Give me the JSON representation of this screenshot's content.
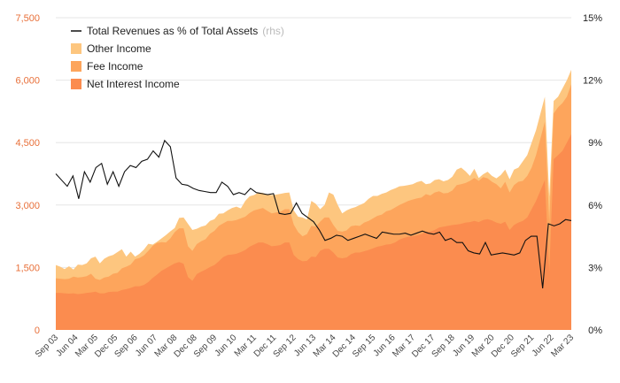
{
  "chart_data": {
    "type": "area",
    "title": "",
    "xlabel": "",
    "ylabel": "",
    "x_ticks": [
      "Sep 03",
      "Jun 04",
      "Mar 05",
      "Dec 05",
      "Sep 06",
      "Jun 07",
      "Mar 08",
      "Dec 08",
      "Sep 09",
      "Jun 10",
      "Mar 11",
      "Dec 11",
      "Sep 12",
      "Jun 13",
      "Mar 14",
      "Dec 14",
      "Sep 15",
      "Jun 16",
      "Mar 17",
      "Dec 17",
      "Sep 18",
      "Jun 19",
      "Mar 20",
      "Dec 20",
      "Sep 21",
      "Jun 22",
      "Mar 23"
    ],
    "y_left": {
      "ylim": [
        0,
        7500
      ],
      "ticks": [
        "0",
        "1,500",
        "3,000",
        "4,500",
        "6,000",
        "7,500"
      ]
    },
    "y_right": {
      "ylim": [
        0,
        15
      ],
      "ticks": [
        "0%",
        "3%",
        "6%",
        "9%",
        "12%",
        "15%"
      ]
    },
    "grid": true,
    "legend_position": "top-left",
    "legend": {
      "line_label": "Total Revenues as % of Total Assets",
      "line_suffix": "(rhs)"
    },
    "colors": {
      "net_interest": "#fb8c4f",
      "fee": "#fda55c",
      "other": "#fdc67f",
      "line": "#111111",
      "left_axis": "#e8703a"
    },
    "series": [
      {
        "name": "Net Interest Income",
        "stack_top": [
          890,
          890,
          880,
          870,
          880,
          860,
          870,
          890,
          900,
          920,
          880,
          880,
          910,
          920,
          920,
          960,
          980,
          1010,
          1050,
          1050,
          1080,
          1150,
          1250,
          1330,
          1420,
          1480,
          1540,
          1600,
          1630,
          1590,
          1270,
          1180,
          1340,
          1400,
          1450,
          1510,
          1560,
          1650,
          1750,
          1800,
          1810,
          1830,
          1870,
          1920,
          2000,
          2050,
          2100,
          2100,
          2060,
          2010,
          2020,
          2040,
          2100,
          2100,
          1800,
          1700,
          1650,
          1660,
          1760,
          1750,
          1900,
          1950,
          1950,
          1860,
          1740,
          1720,
          1740,
          1820,
          1860,
          1860,
          1890,
          1920,
          1960,
          2000,
          2020,
          2050,
          2060,
          2100,
          2170,
          2210,
          2240,
          2250,
          2270,
          2300,
          2360,
          2360,
          2400,
          2460,
          2480,
          2500,
          2520,
          2530,
          2550,
          2580,
          2590,
          2620,
          2590,
          2640,
          2660,
          2630,
          2580,
          2550,
          2600,
          2400,
          2520,
          2580,
          2620,
          2700,
          2900,
          3100,
          3350,
          3600,
          1400,
          4100,
          4200,
          4300,
          4500,
          4700
        ]
      },
      {
        "name": "Fee Income",
        "stack_top": [
          1240,
          1230,
          1220,
          1230,
          1280,
          1260,
          1270,
          1290,
          1350,
          1230,
          1200,
          1260,
          1280,
          1350,
          1370,
          1480,
          1520,
          1570,
          1700,
          1730,
          1790,
          1900,
          2020,
          2090,
          2110,
          2100,
          2200,
          2350,
          2440,
          2440,
          2010,
          1900,
          2060,
          2130,
          2180,
          2310,
          2380,
          2500,
          2560,
          2620,
          2620,
          2640,
          2680,
          2720,
          2810,
          2870,
          2900,
          2930,
          2860,
          2800,
          2820,
          2840,
          2900,
          2900,
          2530,
          2350,
          2250,
          2300,
          2500,
          2480,
          2600,
          2700,
          2700,
          2520,
          2380,
          2360,
          2390,
          2490,
          2510,
          2500,
          2580,
          2620,
          2680,
          2740,
          2770,
          2850,
          2880,
          2940,
          3000,
          3050,
          3100,
          3130,
          3160,
          3180,
          3260,
          3230,
          3300,
          3330,
          3280,
          3290,
          3350,
          3480,
          3500,
          3530,
          3580,
          3650,
          3580,
          3670,
          3640,
          3560,
          3500,
          3400,
          3560,
          3300,
          3480,
          3560,
          3580,
          3700,
          3900,
          4200,
          4600,
          5000,
          2600,
          5200,
          5350,
          5450,
          5600,
          5900
        ]
      },
      {
        "name": "Other Income",
        "stack_top": [
          1560,
          1520,
          1460,
          1530,
          1450,
          1570,
          1560,
          1600,
          1720,
          1760,
          1600,
          1710,
          1770,
          1800,
          1870,
          1940,
          1760,
          1880,
          1760,
          1830,
          1930,
          2070,
          2050,
          2120,
          2200,
          2280,
          2370,
          2450,
          2690,
          2700,
          2550,
          2400,
          2430,
          2480,
          2510,
          2620,
          2660,
          2790,
          2800,
          2870,
          2930,
          2960,
          2920,
          3100,
          3210,
          3240,
          3300,
          3290,
          3250,
          3240,
          3250,
          3270,
          3290,
          3300,
          2870,
          2720,
          2700,
          2650,
          3100,
          3030,
          2900,
          3000,
          3300,
          3250,
          3000,
          2800,
          2870,
          2920,
          2950,
          3000,
          3050,
          3150,
          3220,
          3220,
          3270,
          3300,
          3360,
          3400,
          3450,
          3460,
          3480,
          3500,
          3550,
          3580,
          3500,
          3520,
          3600,
          3620,
          3570,
          3600,
          3680,
          3850,
          3900,
          3810,
          3700,
          3870,
          3650,
          3740,
          3800,
          3700,
          3640,
          3720,
          3850,
          3620,
          3850,
          3900,
          4050,
          4200,
          4500,
          4800,
          5200,
          5600,
          3200,
          5500,
          5600,
          5800,
          6000,
          6250
        ]
      },
      {
        "name": "Total Revenues as % of Total Assets",
        "axis": "right",
        "values": [
          7.5,
          7.2,
          6.9,
          7.4,
          6.3,
          7.6,
          7.1,
          7.8,
          8.0,
          7.0,
          7.6,
          6.9,
          7.6,
          7.9,
          7.8,
          8.1,
          8.2,
          8.6,
          8.3,
          9.1,
          8.8,
          7.3,
          7.0,
          6.95,
          6.8,
          6.7,
          6.65,
          6.6,
          6.6,
          7.1,
          6.9,
          6.5,
          6.6,
          6.5,
          6.8,
          6.6,
          6.55,
          6.5,
          6.55,
          5.6,
          5.55,
          5.6,
          6.1,
          5.6,
          5.4,
          5.2,
          4.8,
          4.3,
          4.4,
          4.55,
          4.5,
          4.3,
          4.4,
          4.5,
          4.6,
          4.5,
          4.4,
          4.7,
          4.65,
          4.6,
          4.6,
          4.65,
          4.55,
          4.65,
          4.75,
          4.65,
          4.6,
          4.7,
          4.3,
          4.4,
          4.2,
          4.2,
          3.8,
          3.7,
          3.65,
          4.2,
          3.6,
          3.65,
          3.7,
          3.65,
          3.6,
          3.7,
          4.3,
          4.5,
          4.5,
          2.0,
          5.1,
          5.0,
          5.1,
          5.3,
          5.25
        ]
      }
    ]
  }
}
